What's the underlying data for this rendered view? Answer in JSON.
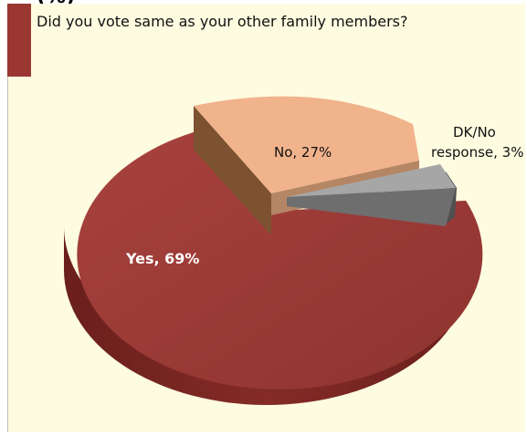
{
  "header": {
    "cropped_top_text": "(%)"
  },
  "chart_data": {
    "type": "pie",
    "title": "Did you vote same as your other family members?",
    "slices": [
      {
        "label": "Yes",
        "value": 69,
        "display": "Yes, 69%",
        "color": "#9a3a36"
      },
      {
        "label": "No",
        "value": 27,
        "display": "No, 27%",
        "color": "#f2b28a"
      },
      {
        "label": "DK/No response",
        "value": 3,
        "display_line1": "DK/No",
        "display_line2": "response, 3%",
        "color": "#a6a6a6"
      }
    ],
    "units": "%",
    "style": "3d-exploded",
    "accent_color": "#9a3733",
    "background_color": "#fdfbe0"
  }
}
